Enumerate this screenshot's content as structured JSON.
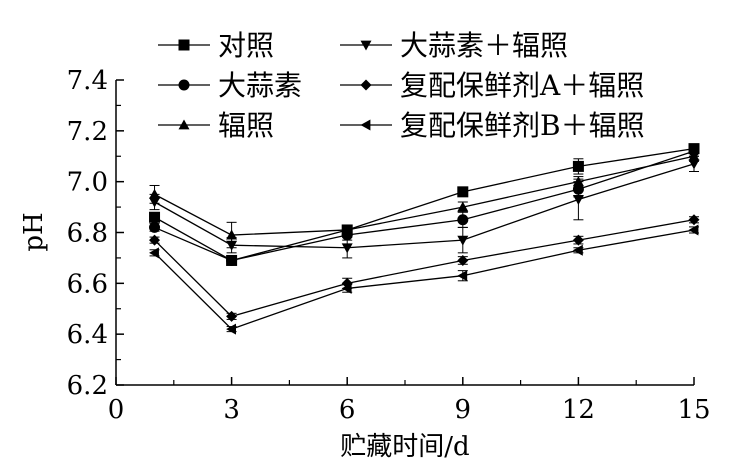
{
  "chart_data": {
    "type": "line",
    "xlabel": "贮藏时间/d",
    "ylabel": "pH",
    "xlim": [
      0,
      15
    ],
    "ylim": [
      6.2,
      7.4
    ],
    "xticks": [
      "0",
      "3",
      "6",
      "9",
      "12",
      "15"
    ],
    "yticks": [
      "6.2",
      "6.4",
      "6.6",
      "6.8",
      "7.0",
      "7.2",
      "7.4"
    ],
    "grid": false,
    "legend_position": "top",
    "x": [
      1,
      3,
      6,
      9,
      12,
      15
    ],
    "series": [
      {
        "name": "对照",
        "marker": "square",
        "values": [
          6.86,
          6.69,
          6.81,
          6.96,
          7.06,
          7.13
        ],
        "errors": [
          0.015,
          0.01,
          0.015,
          0.015,
          0.03,
          0.015
        ]
      },
      {
        "name": "大蒜素",
        "marker": "circle",
        "values": [
          6.82,
          6.69,
          6.79,
          6.85,
          6.97,
          7.12
        ],
        "errors": [
          0.015,
          0.01,
          0.02,
          0.03,
          0.03,
          0.02
        ]
      },
      {
        "name": "辐照",
        "marker": "triangle-up",
        "values": [
          6.95,
          6.79,
          6.81,
          6.9,
          7.0,
          7.1
        ],
        "errors": [
          0.035,
          0.05,
          0.015,
          0.02,
          0.02,
          0.02
        ]
      },
      {
        "name": "大蒜素＋辐照",
        "marker": "triangle-down",
        "values": [
          6.92,
          6.75,
          6.74,
          6.77,
          6.93,
          7.07
        ],
        "errors": [
          0.03,
          0.03,
          0.04,
          0.05,
          0.08,
          0.03
        ]
      },
      {
        "name": "复配保鲜剂A＋辐照",
        "marker": "diamond",
        "values": [
          6.77,
          6.47,
          6.6,
          6.69,
          6.77,
          6.85
        ],
        "errors": [
          0.012,
          0.012,
          0.02,
          0.015,
          0.015,
          0.012
        ]
      },
      {
        "name": "复配保鲜剂B＋辐照",
        "marker": "triangle-left",
        "values": [
          6.72,
          6.42,
          6.58,
          6.63,
          6.73,
          6.81
        ],
        "errors": [
          0.012,
          0.01,
          0.015,
          0.02,
          0.01,
          0.012
        ]
      }
    ]
  }
}
